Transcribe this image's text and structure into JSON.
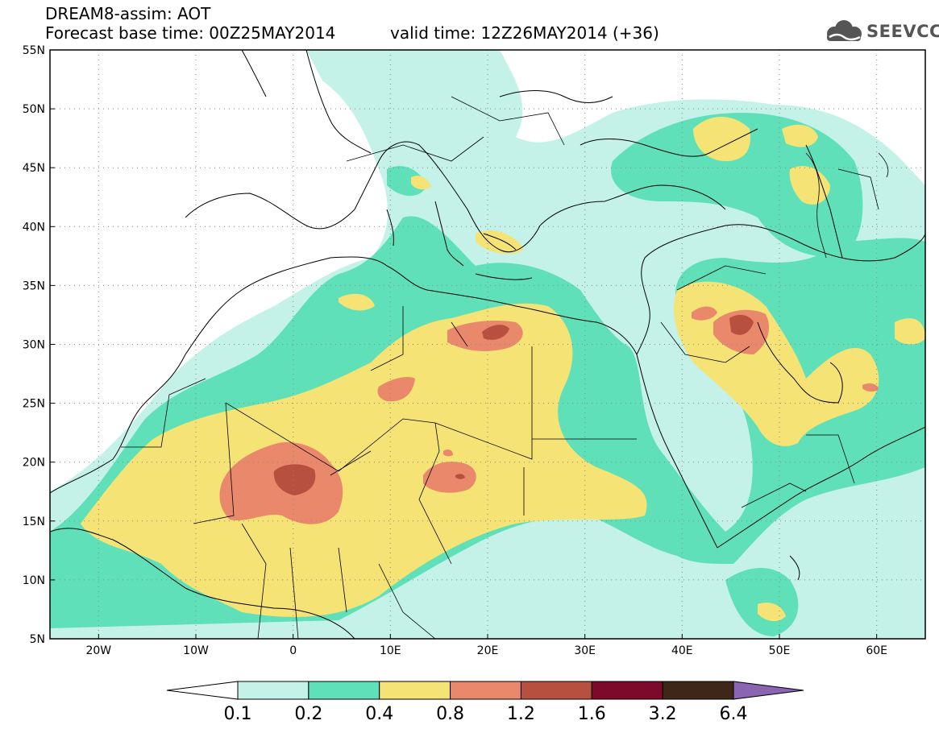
{
  "header": {
    "title_line1": "DREAM8-assim: AOT",
    "title_line2": "Forecast base time: 00Z25MAY2014",
    "valid_time": "valid time: 12Z26MAY2014 (+36)",
    "logo_text": "SEEVCCC",
    "logo_icon": "cloud-icon"
  },
  "map": {
    "variable": "AOT",
    "extent": {
      "lon": [
        -25,
        65
      ],
      "lat": [
        5,
        55
      ]
    },
    "lat_labels": [
      "55N",
      "50N",
      "45N",
      "40N",
      "35N",
      "30N",
      "25N",
      "20N",
      "15N",
      "10N",
      "5N"
    ],
    "lat_values": [
      55,
      50,
      45,
      40,
      35,
      30,
      25,
      20,
      15,
      10,
      5
    ],
    "lon_labels": [
      "20W",
      "10W",
      "0",
      "10E",
      "20E",
      "30E",
      "40E",
      "50E",
      "60E"
    ],
    "lon_values": [
      -20,
      -10,
      0,
      10,
      20,
      30,
      40,
      50,
      60
    ],
    "grid": "dotted"
  },
  "colorbar": {
    "labels": [
      "0.1",
      "0.2",
      "0.4",
      "0.8",
      "1.2",
      "1.6",
      "3.2",
      "6.4"
    ],
    "colors": [
      "#ffffff",
      "#c4f2e8",
      "#5fe0b8",
      "#f5e375",
      "#e9886b",
      "#b7503f",
      "#7d0a2b",
      "#3e2718",
      "#8b64b2"
    ]
  }
}
